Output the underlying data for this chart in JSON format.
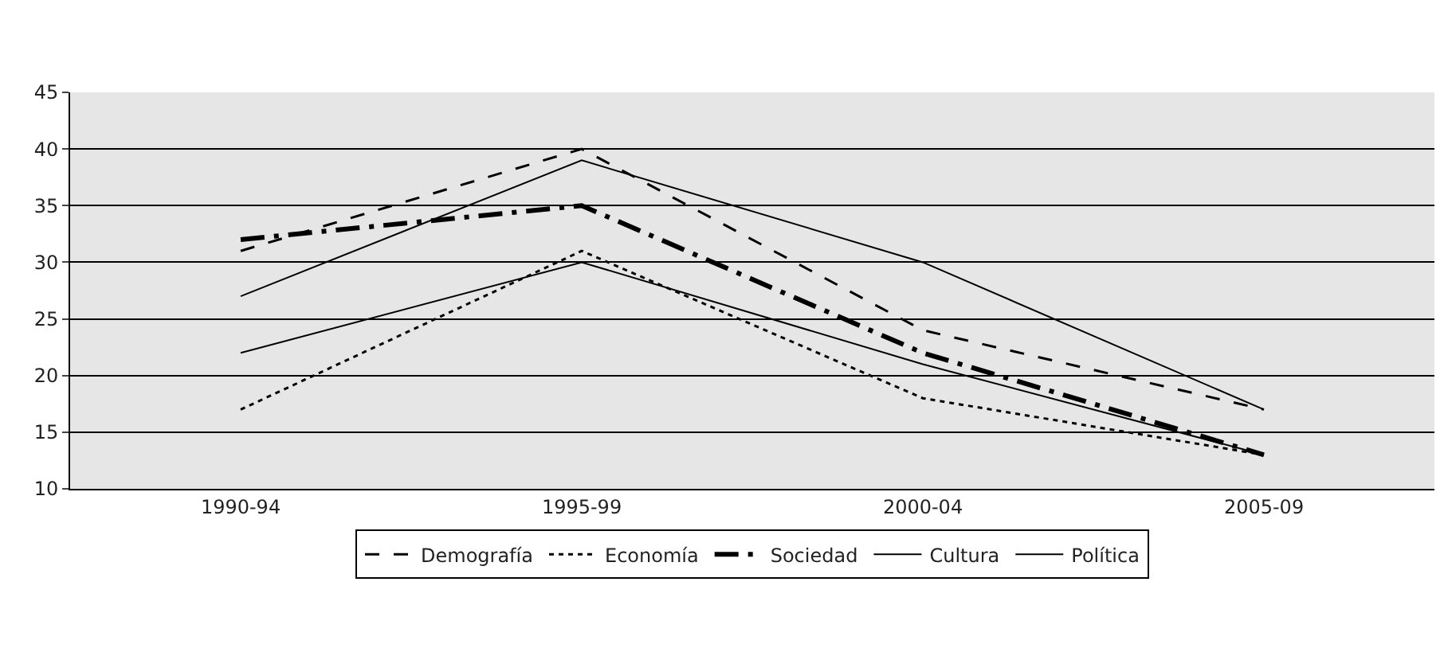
{
  "chart_data": {
    "type": "line",
    "categories": [
      "1990-94",
      "1995-99",
      "2000-04",
      "2005-09"
    ],
    "series": [
      {
        "name": "Demografía",
        "color": "#000000",
        "line_style": "dashed",
        "values": [
          31,
          40,
          24,
          17
        ]
      },
      {
        "name": "Economía",
        "color": "#000000",
        "line_style": "dotted",
        "values": [
          17,
          31,
          18,
          13
        ]
      },
      {
        "name": "Sociedad",
        "color": "#000000",
        "line_style": "dashdot",
        "values": [
          32,
          35,
          22,
          13
        ]
      },
      {
        "name": "Cultura",
        "color": "#000000",
        "line_style": "solid",
        "values": [
          27,
          39,
          30,
          17
        ]
      },
      {
        "name": "Política",
        "color": "#000000",
        "line_style": "solid",
        "values": [
          22,
          30,
          21,
          13
        ]
      }
    ],
    "ylim": [
      10,
      45
    ],
    "yticks": [
      10,
      15,
      20,
      25,
      30,
      35,
      40,
      45
    ],
    "grid": "y",
    "legend": "bottom",
    "marker": "none"
  }
}
